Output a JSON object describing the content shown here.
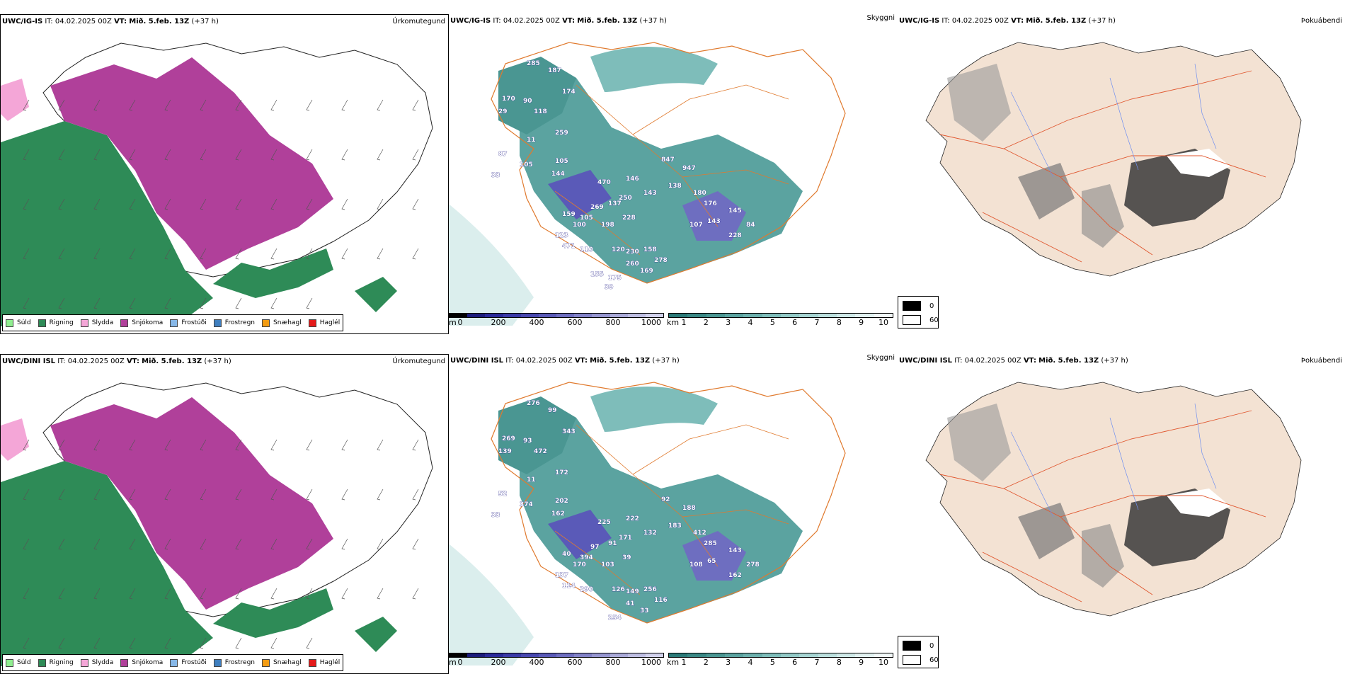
{
  "rows": [
    {
      "precip": {
        "model": "UWC/IG-IS",
        "init_label": "IT:",
        "init_value": "04.02.2025 00Z",
        "valid_label": "VT:",
        "valid_value": "Mið. 5.feb. 13Z",
        "lead": "(+37 h)",
        "title": "Úrkomutegund"
      },
      "cloud": {
        "model": "UWC/IG-IS",
        "init_label": "IT:",
        "init_value": "04.02.2025 00Z",
        "valid_label": "VT:",
        "valid_value": "Mið. 5.feb. 13Z",
        "lead": "(+37 h)",
        "title": "Skyggni",
        "cloud_base_labels": [
          "285",
          "187",
          "174",
          "170",
          "90",
          "29",
          "118",
          "259",
          "11",
          "87",
          "105",
          "105",
          "144",
          "33",
          "470",
          "146",
          "847",
          "947",
          "138",
          "143",
          "250",
          "180",
          "176",
          "137",
          "269",
          "105",
          "159",
          "100",
          "123",
          "228",
          "198",
          "107",
          "143",
          "228",
          "471",
          "145",
          "84",
          "110",
          "120",
          "230",
          "158",
          "278",
          "260",
          "169",
          "175",
          "155",
          "39"
        ]
      },
      "fog": {
        "model": "UWC/IG-IS",
        "init_label": "IT:",
        "init_value": "04.02.2025 00Z",
        "valid_label": "VT:",
        "valid_value": "Mið. 5.feb. 13Z",
        "lead": "(+37 h)",
        "title": "Þokuábendi"
      }
    },
    {
      "precip": {
        "model": "UWC/DINI ISL",
        "init_label": "IT:",
        "init_value": "04.02.2025 00Z",
        "valid_label": "VT:",
        "valid_value": "Mið. 5.feb. 13Z",
        "lead": "(+37 h)",
        "title": "Úrkomutegund"
      },
      "cloud": {
        "model": "UWC/DINI ISL",
        "init_label": "IT:",
        "init_value": "04.02.2025 00Z",
        "valid_label": "VT:",
        "valid_value": "Mið. 5.feb. 13Z",
        "lead": "(+37 h)",
        "title": "Skyggni",
        "cloud_base_labels": [
          "276",
          "99",
          "343",
          "269",
          "93",
          "139",
          "472",
          "172",
          "11",
          "52",
          "374",
          "202",
          "162",
          "33",
          "225",
          "222",
          "92",
          "188",
          "183",
          "132",
          "171",
          "412",
          "285",
          "91",
          "97",
          "394",
          "40",
          "170",
          "137",
          "39",
          "103",
          "108",
          "65",
          "162",
          "114",
          "143",
          "278",
          "290",
          "126",
          "149",
          "256",
          "116",
          "41",
          "33",
          "254"
        ]
      },
      "fog": {
        "model": "UWC/DINI ISL",
        "init_label": "IT:",
        "init_value": "04.02.2025 00Z",
        "valid_label": "VT:",
        "valid_value": "Mið. 5.feb. 13Z",
        "lead": "(+37 h)",
        "title": "Þokuábendi"
      }
    }
  ],
  "precip_legend": [
    {
      "label": "Súld",
      "color": "#90ee90"
    },
    {
      "label": "Rigning",
      "color": "#2e8b57"
    },
    {
      "label": "Slydda",
      "color": "#f4a6d7"
    },
    {
      "label": "Snjókoma",
      "color": "#b0409a"
    },
    {
      "label": "Frostúði",
      "color": "#87b8e8"
    },
    {
      "label": "Frostregn",
      "color": "#3f7fbf"
    },
    {
      "label": "Snæhagl",
      "color": "#f39c12"
    },
    {
      "label": "Haglél",
      "color": "#e51b1b"
    }
  ],
  "height_colorbar": {
    "unit": "m",
    "ticks": [
      "0",
      "200",
      "400",
      "600",
      "800",
      "1000"
    ],
    "colors": [
      "#000000",
      "#1c1c7c",
      "#2a2a9a",
      "#3a3aa8",
      "#4848b0",
      "#5a5ab8",
      "#6e6ec0",
      "#8282c8",
      "#9696d0",
      "#aaaad8",
      "#bebee2",
      "#d2d2ec"
    ]
  },
  "visibility_colorbar": {
    "unit": "km",
    "ticks": [
      "1",
      "2",
      "3",
      "4",
      "5",
      "6",
      "7",
      "8",
      "9",
      "10"
    ],
    "colors": [
      "#2b7a78",
      "#3a8885",
      "#4a9692",
      "#5ba3a0",
      "#6cb0ad",
      "#7ebdba",
      "#92c9c6",
      "#a6d4d2",
      "#bbdfdd",
      "#cfe9e8",
      "#e2f2f1",
      "#f2f9f9"
    ]
  },
  "fog_legend": [
    {
      "label": "0",
      "color": "#000000"
    },
    {
      "label": "60",
      "color": "#ffffff"
    }
  ],
  "colors": {
    "rain": "#2e8b57",
    "snow": "#b0409a",
    "sleet": "#f4a6d7",
    "roads": "#e07a2e",
    "land_fog": "#f3e2d3",
    "rivers": "#6f8ff0"
  }
}
